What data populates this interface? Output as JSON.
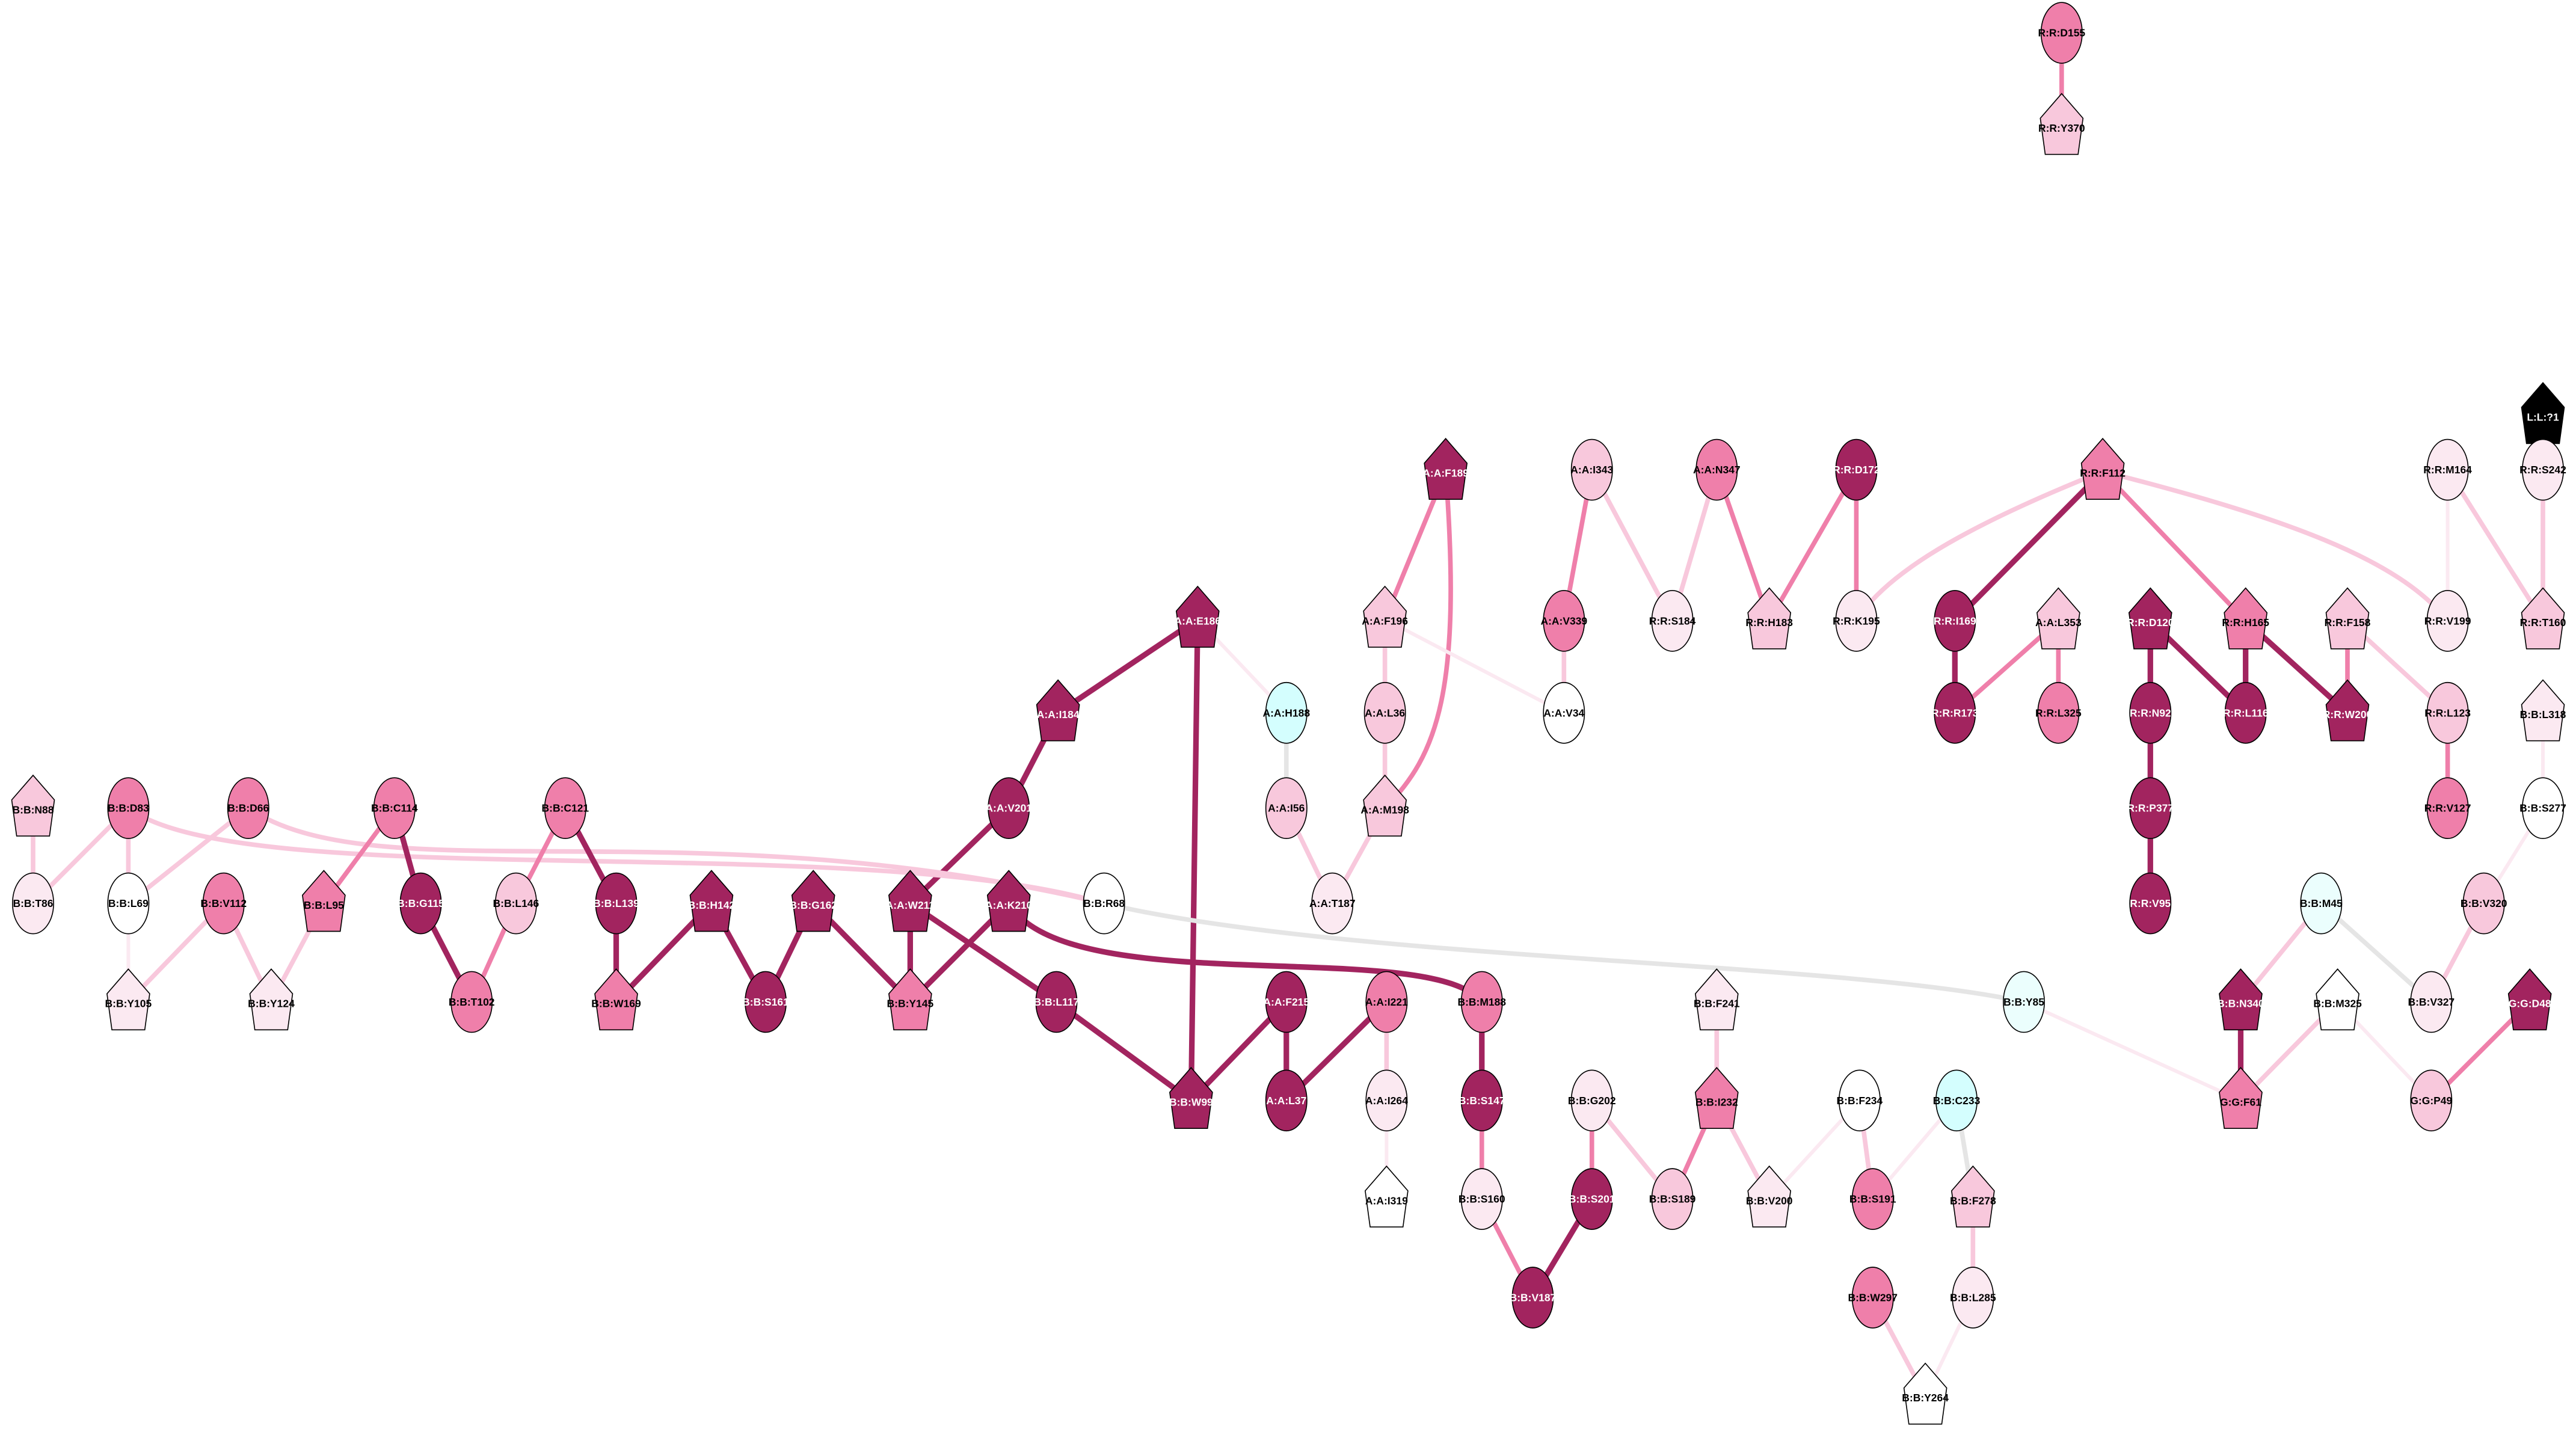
{
  "palette": {
    "dark": "#a2245f",
    "mid": "#ef7faa",
    "light": "#f8c8dc",
    "pale": "#fbe9f1",
    "white": "#ffffff",
    "cyan": "#d4fefe",
    "palecyan": "#ebfefd",
    "black": "#000000",
    "gray": "#e5e5e5",
    "edge_cyan": "#ccfcfc"
  },
  "nodes": [
    {
      "id": "R:R:D155",
      "shape": "ellipse",
      "level": "mid"
    },
    {
      "id": "R:R:Y370",
      "shape": "pentagon",
      "level": "light"
    },
    {
      "id": "L:L:?1",
      "shape": "pentagon",
      "level": "black"
    },
    {
      "id": "R:R:M164",
      "shape": "ellipse",
      "level": "pale"
    },
    {
      "id": "R:R:S242",
      "shape": "ellipse",
      "level": "pale"
    },
    {
      "id": "R:R:V199",
      "shape": "ellipse",
      "level": "pale"
    },
    {
      "id": "R:R:T160",
      "shape": "pentagon",
      "level": "light"
    },
    {
      "id": "A:A:F189",
      "shape": "pentagon",
      "level": "dark"
    },
    {
      "id": "A:A:I343",
      "shape": "ellipse",
      "level": "light"
    },
    {
      "id": "A:A:N347",
      "shape": "ellipse",
      "level": "mid"
    },
    {
      "id": "R:R:D172",
      "shape": "ellipse",
      "level": "dark"
    },
    {
      "id": "R:R:F112",
      "shape": "pentagon",
      "level": "mid"
    },
    {
      "id": "A:A:F196",
      "shape": "pentagon",
      "level": "light"
    },
    {
      "id": "A:A:V339",
      "shape": "ellipse",
      "level": "mid"
    },
    {
      "id": "R:R:S184",
      "shape": "ellipse",
      "level": "pale"
    },
    {
      "id": "R:R:H183",
      "shape": "pentagon",
      "level": "light"
    },
    {
      "id": "R:R:K195",
      "shape": "ellipse",
      "level": "pale"
    },
    {
      "id": "R:R:I169",
      "shape": "ellipse",
      "level": "dark"
    },
    {
      "id": "A:A:L353",
      "shape": "pentagon",
      "level": "light"
    },
    {
      "id": "R:R:D120",
      "shape": "pentagon",
      "level": "dark"
    },
    {
      "id": "R:R:H165",
      "shape": "pentagon",
      "level": "mid"
    },
    {
      "id": "R:R:F158",
      "shape": "pentagon",
      "level": "light"
    },
    {
      "id": "A:A:E186",
      "shape": "pentagon",
      "level": "dark"
    },
    {
      "id": "A:A:I184",
      "shape": "pentagon",
      "level": "dark"
    },
    {
      "id": "A:A:H188",
      "shape": "ellipse",
      "level": "cyan"
    },
    {
      "id": "A:A:L36",
      "shape": "ellipse",
      "level": "light"
    },
    {
      "id": "A:A:V34",
      "shape": "ellipse",
      "level": "white"
    },
    {
      "id": "R:R:R173",
      "shape": "ellipse",
      "level": "dark"
    },
    {
      "id": "R:R:L325",
      "shape": "ellipse",
      "level": "mid"
    },
    {
      "id": "R:R:N92",
      "shape": "ellipse",
      "level": "dark"
    },
    {
      "id": "R:R:L116",
      "shape": "ellipse",
      "level": "dark"
    },
    {
      "id": "R:R:W200",
      "shape": "pentagon",
      "level": "dark"
    },
    {
      "id": "R:R:L123",
      "shape": "ellipse",
      "level": "light"
    },
    {
      "id": "B:B:L318",
      "shape": "pentagon",
      "level": "pale"
    },
    {
      "id": "A:A:V201",
      "shape": "ellipse",
      "level": "dark"
    },
    {
      "id": "A:A:I56",
      "shape": "ellipse",
      "level": "light"
    },
    {
      "id": "A:A:M198",
      "shape": "pentagon",
      "level": "light"
    },
    {
      "id": "R:R:P377",
      "shape": "ellipse",
      "level": "dark"
    },
    {
      "id": "R:R:V127",
      "shape": "ellipse",
      "level": "mid"
    },
    {
      "id": "B:B:S277",
      "shape": "ellipse",
      "level": "white"
    },
    {
      "id": "B:B:N88",
      "shape": "pentagon",
      "level": "light"
    },
    {
      "id": "B:B:D83",
      "shape": "ellipse",
      "level": "mid"
    },
    {
      "id": "B:B:D66",
      "shape": "ellipse",
      "level": "mid"
    },
    {
      "id": "B:B:C114",
      "shape": "ellipse",
      "level": "mid"
    },
    {
      "id": "B:B:C121",
      "shape": "ellipse",
      "level": "mid"
    },
    {
      "id": "B:B:T86",
      "shape": "ellipse",
      "level": "pale"
    },
    {
      "id": "B:B:L69",
      "shape": "ellipse",
      "level": "white"
    },
    {
      "id": "B:B:V112",
      "shape": "ellipse",
      "level": "mid"
    },
    {
      "id": "B:B:L95",
      "shape": "pentagon",
      "level": "mid"
    },
    {
      "id": "B:B:G115",
      "shape": "ellipse",
      "level": "dark"
    },
    {
      "id": "B:B:L146",
      "shape": "ellipse",
      "level": "light"
    },
    {
      "id": "B:B:L139",
      "shape": "ellipse",
      "level": "dark"
    },
    {
      "id": "B:B:H142",
      "shape": "pentagon",
      "level": "dark"
    },
    {
      "id": "B:B:G162",
      "shape": "pentagon",
      "level": "dark"
    },
    {
      "id": "A:A:W211",
      "shape": "pentagon",
      "level": "dark"
    },
    {
      "id": "A:A:K210",
      "shape": "pentagon",
      "level": "dark"
    },
    {
      "id": "B:B:R68",
      "shape": "ellipse",
      "level": "white"
    },
    {
      "id": "A:A:T187",
      "shape": "ellipse",
      "level": "pale"
    },
    {
      "id": "R:R:V95",
      "shape": "ellipse",
      "level": "dark"
    },
    {
      "id": "B:B:M45",
      "shape": "ellipse",
      "level": "palecyan"
    },
    {
      "id": "B:B:V320",
      "shape": "ellipse",
      "level": "light"
    },
    {
      "id": "B:B:Y105",
      "shape": "pentagon",
      "level": "pale"
    },
    {
      "id": "B:B:Y124",
      "shape": "pentagon",
      "level": "pale"
    },
    {
      "id": "B:B:T102",
      "shape": "ellipse",
      "level": "mid"
    },
    {
      "id": "B:B:W169",
      "shape": "pentagon",
      "level": "mid"
    },
    {
      "id": "B:B:S161",
      "shape": "ellipse",
      "level": "dark"
    },
    {
      "id": "B:B:Y145",
      "shape": "pentagon",
      "level": "mid"
    },
    {
      "id": "B:B:L117",
      "shape": "ellipse",
      "level": "dark"
    },
    {
      "id": "A:A:F215",
      "shape": "ellipse",
      "level": "dark"
    },
    {
      "id": "A:A:I221",
      "shape": "ellipse",
      "level": "mid"
    },
    {
      "id": "B:B:M188",
      "shape": "ellipse",
      "level": "mid"
    },
    {
      "id": "B:B:F241",
      "shape": "pentagon",
      "level": "pale"
    },
    {
      "id": "B:B:Y85",
      "shape": "ellipse",
      "level": "palecyan"
    },
    {
      "id": "B:B:N340",
      "shape": "pentagon",
      "level": "dark"
    },
    {
      "id": "B:B:M325",
      "shape": "pentagon",
      "level": "white"
    },
    {
      "id": "B:B:V327",
      "shape": "ellipse",
      "level": "pale"
    },
    {
      "id": "G:G:D48",
      "shape": "pentagon",
      "level": "dark"
    },
    {
      "id": "B:B:W99",
      "shape": "pentagon",
      "level": "dark"
    },
    {
      "id": "A:A:L37",
      "shape": "ellipse",
      "level": "dark"
    },
    {
      "id": "A:A:I264",
      "shape": "ellipse",
      "level": "pale"
    },
    {
      "id": "B:B:S147",
      "shape": "ellipse",
      "level": "dark"
    },
    {
      "id": "B:B:G202",
      "shape": "ellipse",
      "level": "pale"
    },
    {
      "id": "B:B:I232",
      "shape": "pentagon",
      "level": "mid"
    },
    {
      "id": "B:B:F234",
      "shape": "ellipse",
      "level": "white"
    },
    {
      "id": "B:B:C233",
      "shape": "ellipse",
      "level": "cyan"
    },
    {
      "id": "G:G:F61",
      "shape": "pentagon",
      "level": "mid"
    },
    {
      "id": "G:G:P49",
      "shape": "ellipse",
      "level": "light"
    },
    {
      "id": "A:A:I319",
      "shape": "pentagon",
      "level": "white"
    },
    {
      "id": "B:B:S160",
      "shape": "ellipse",
      "level": "pale"
    },
    {
      "id": "B:B:S201",
      "shape": "ellipse",
      "level": "dark"
    },
    {
      "id": "B:B:S189",
      "shape": "ellipse",
      "level": "light"
    },
    {
      "id": "B:B:V200",
      "shape": "pentagon",
      "level": "pale"
    },
    {
      "id": "B:B:S191",
      "shape": "ellipse",
      "level": "mid"
    },
    {
      "id": "B:B:F278",
      "shape": "pentagon",
      "level": "light"
    },
    {
      "id": "B:B:V187",
      "shape": "ellipse",
      "level": "dark"
    },
    {
      "id": "B:B:W297",
      "shape": "ellipse",
      "level": "mid"
    },
    {
      "id": "B:B:L285",
      "shape": "ellipse",
      "level": "pale"
    },
    {
      "id": "B:B:Y264",
      "shape": "pentagon",
      "level": "white"
    }
  ],
  "edges": [
    [
      "R:R:D155",
      "R:R:Y370",
      "mid"
    ],
    [
      "L:L:?1",
      "R:R:S242",
      "edge_cyan"
    ],
    [
      "R:R:M164",
      "R:R:V199",
      "pale"
    ],
    [
      "R:R:M164",
      "R:R:T160",
      "light"
    ],
    [
      "R:R:S242",
      "R:R:T160",
      "light"
    ],
    [
      "A:A:F189",
      "A:A:F196",
      "mid"
    ],
    [
      "A:A:F189",
      "A:A:M198",
      "mid"
    ],
    [
      "A:A:I343",
      "A:A:V339",
      "mid"
    ],
    [
      "A:A:I343",
      "R:R:S184",
      "light"
    ],
    [
      "A:A:N347",
      "R:R:S184",
      "light"
    ],
    [
      "A:A:N347",
      "R:R:H183",
      "mid"
    ],
    [
      "R:R:D172",
      "R:R:H183",
      "mid"
    ],
    [
      "R:R:D172",
      "R:R:K195",
      "mid"
    ],
    [
      "R:R:F112",
      "R:R:K195",
      "light"
    ],
    [
      "R:R:F112",
      "R:R:I169",
      "dark"
    ],
    [
      "R:R:F112",
      "R:R:H165",
      "mid"
    ],
    [
      "R:R:F112",
      "R:R:V199",
      "light"
    ],
    [
      "A:A:F196",
      "A:A:L36",
      "light"
    ],
    [
      "A:A:F196",
      "A:A:V34",
      "pale"
    ],
    [
      "A:A:V339",
      "A:A:V34",
      "light"
    ],
    [
      "R:R:I169",
      "R:R:R173",
      "dark"
    ],
    [
      "A:A:L353",
      "R:R:R173",
      "mid"
    ],
    [
      "A:A:L353",
      "R:R:L325",
      "mid"
    ],
    [
      "R:R:D120",
      "R:R:N92",
      "dark"
    ],
    [
      "R:R:D120",
      "R:R:L116",
      "dark"
    ],
    [
      "R:R:H165",
      "R:R:L116",
      "dark"
    ],
    [
      "R:R:H165",
      "R:R:W200",
      "dark"
    ],
    [
      "R:R:F158",
      "R:R:W200",
      "mid"
    ],
    [
      "R:R:F158",
      "R:R:L123",
      "light"
    ],
    [
      "A:A:E186",
      "A:A:I184",
      "dark"
    ],
    [
      "A:A:E186",
      "B:B:W99",
      "dark"
    ],
    [
      "A:A:E186",
      "A:A:H188",
      "pale"
    ],
    [
      "A:A:I184",
      "A:A:V201",
      "dark"
    ],
    [
      "A:A:H188",
      "A:A:I56",
      "gray"
    ],
    [
      "A:A:L36",
      "A:A:M198",
      "light"
    ],
    [
      "R:R:N92",
      "R:R:P377",
      "dark"
    ],
    [
      "R:R:P377",
      "R:R:V95",
      "dark"
    ],
    [
      "R:R:L123",
      "R:R:V127",
      "mid"
    ],
    [
      "B:B:L318",
      "B:B:S277",
      "pale"
    ],
    [
      "A:A:V201",
      "A:A:W211",
      "dark"
    ],
    [
      "A:A:I56",
      "A:A:T187",
      "light"
    ],
    [
      "A:A:M198",
      "A:A:T187",
      "light"
    ],
    [
      "B:B:S277",
      "B:B:V320",
      "pale"
    ],
    [
      "B:B:N88",
      "B:B:T86",
      "light"
    ],
    [
      "B:B:D83",
      "B:B:T86",
      "light"
    ],
    [
      "B:B:D83",
      "B:B:L69",
      "light"
    ],
    [
      "B:B:D83",
      "B:B:R68",
      "light"
    ],
    [
      "B:B:D66",
      "B:B:L69",
      "light"
    ],
    [
      "B:B:D66",
      "B:B:R68",
      "light"
    ],
    [
      "B:B:C114",
      "B:B:L95",
      "mid"
    ],
    [
      "B:B:C114",
      "B:B:G115",
      "dark"
    ],
    [
      "B:B:C121",
      "B:B:L146",
      "mid"
    ],
    [
      "B:B:C121",
      "B:B:L139",
      "dark"
    ],
    [
      "B:B:L69",
      "B:B:Y105",
      "pale"
    ],
    [
      "B:B:V112",
      "B:B:Y105",
      "light"
    ],
    [
      "B:B:V112",
      "B:B:Y124",
      "light"
    ],
    [
      "B:B:L95",
      "B:B:Y124",
      "light"
    ],
    [
      "B:B:G115",
      "B:B:T102",
      "dark"
    ],
    [
      "B:B:L146",
      "B:B:T102",
      "mid"
    ],
    [
      "B:B:L139",
      "B:B:W169",
      "dark"
    ],
    [
      "B:B:H142",
      "B:B:W169",
      "dark"
    ],
    [
      "B:B:H142",
      "B:B:S161",
      "dark"
    ],
    [
      "B:B:G162",
      "B:B:S161",
      "dark"
    ],
    [
      "B:B:G162",
      "B:B:Y145",
      "dark"
    ],
    [
      "A:A:W211",
      "B:B:Y145",
      "dark"
    ],
    [
      "A:A:K210",
      "B:B:Y145",
      "dark"
    ],
    [
      "A:A:W211",
      "B:B:L117",
      "dark"
    ],
    [
      "A:A:K210",
      "B:B:M188",
      "dark"
    ],
    [
      "B:B:R68",
      "B:B:Y85",
      "gray"
    ],
    [
      "B:B:M45",
      "B:B:N340",
      "light"
    ],
    [
      "B:B:M45",
      "B:B:V327",
      "gray"
    ],
    [
      "B:B:V320",
      "B:B:V327",
      "light"
    ],
    [
      "B:B:L117",
      "B:B:W99",
      "dark"
    ],
    [
      "A:A:F215",
      "B:B:W99",
      "dark"
    ],
    [
      "A:A:F215",
      "A:A:L37",
      "dark"
    ],
    [
      "A:A:I221",
      "A:A:L37",
      "dark"
    ],
    [
      "A:A:I221",
      "A:A:I264",
      "light"
    ],
    [
      "B:B:M188",
      "B:B:S147",
      "dark"
    ],
    [
      "B:B:F241",
      "B:B:I232",
      "light"
    ],
    [
      "B:B:Y85",
      "G:G:F61",
      "pale"
    ],
    [
      "B:B:N340",
      "G:G:F61",
      "dark"
    ],
    [
      "B:B:M325",
      "G:G:F61",
      "light"
    ],
    [
      "B:B:M325",
      "G:G:P49",
      "pale"
    ],
    [
      "G:G:D48",
      "G:G:P49",
      "mid"
    ],
    [
      "A:A:I264",
      "A:A:I319",
      "pale"
    ],
    [
      "B:B:S147",
      "B:B:S160",
      "mid"
    ],
    [
      "B:B:G202",
      "B:B:S201",
      "mid"
    ],
    [
      "B:B:G202",
      "B:B:S189",
      "light"
    ],
    [
      "B:B:I232",
      "B:B:S189",
      "mid"
    ],
    [
      "B:B:I232",
      "B:B:V200",
      "light"
    ],
    [
      "B:B:F234",
      "B:B:V200",
      "pale"
    ],
    [
      "B:B:F234",
      "B:B:S191",
      "light"
    ],
    [
      "B:B:C233",
      "B:B:S191",
      "pale"
    ],
    [
      "B:B:C233",
      "B:B:F278",
      "gray"
    ],
    [
      "B:B:S160",
      "B:B:V187",
      "mid"
    ],
    [
      "B:B:S201",
      "B:B:V187",
      "dark"
    ],
    [
      "B:B:F278",
      "B:B:L285",
      "light"
    ],
    [
      "B:B:W297",
      "B:B:Y264",
      "light"
    ],
    [
      "B:B:L285",
      "B:B:Y264",
      "pale"
    ]
  ]
}
